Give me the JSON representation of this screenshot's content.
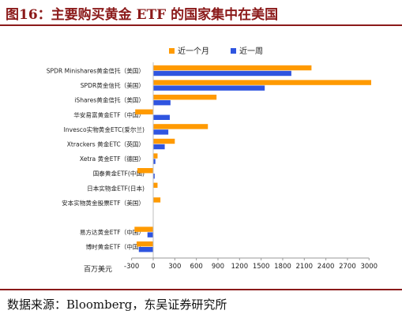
{
  "title": "图16：主要购买黄金 ETF 的国家集中在美国",
  "source": "数据来源：Bloomberg，东吴证券研究所",
  "colors": {
    "accent": "#8b1a1a",
    "series_1m": "#ff9a00",
    "series_1w": "#2f55e0"
  },
  "chart_data": {
    "type": "bar",
    "orientation": "horizontal",
    "unit_label": "百万美元",
    "categories": [
      "SPDR Minishares黄金信托（美国）",
      "SPDR黄金信托（美国）",
      "iShares黄金信托（美国）",
      "华安易富黄金ETF（中国）",
      "Invesco实物黄金ETC(爱尔兰)",
      "Xtrackers 黄金ETC（英国）",
      "Xetra 黄金ETF（德国）",
      "国泰黄金ETF(中国)",
      "日本实物金ETF(日本)",
      "安本实物黄金股票ETF（美国）",
      "",
      "易方达黄金ETF（中国）",
      "博时黄金ETF（中国）"
    ],
    "series": [
      {
        "name": "近一个月",
        "values": [
          2200,
          3030,
          880,
          -250,
          760,
          300,
          60,
          -220,
          60,
          100,
          null,
          -260,
          -230
        ]
      },
      {
        "name": "近一周",
        "values": [
          1920,
          1550,
          240,
          230,
          210,
          160,
          30,
          20,
          0,
          0,
          null,
          -80,
          -200
        ]
      }
    ],
    "xticks": [
      -300,
      0,
      300,
      600,
      900,
      1200,
      1500,
      1800,
      2100,
      2400,
      2700,
      3000
    ],
    "xlim": [
      -300,
      3080
    ],
    "legend": "top-center"
  }
}
